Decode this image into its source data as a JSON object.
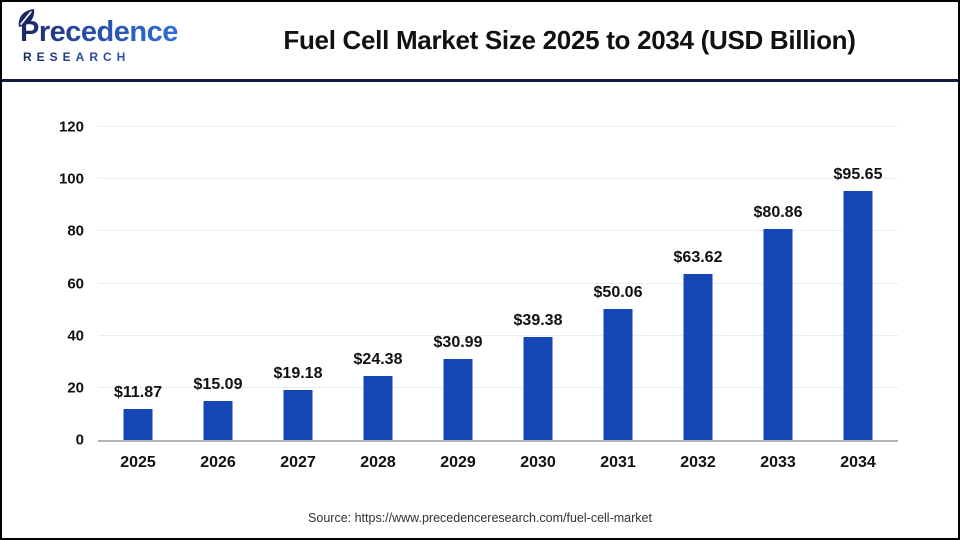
{
  "header": {
    "logo": {
      "primary": "Precedence",
      "secondary": "RESEARCH"
    }
  },
  "chart_data": {
    "type": "bar",
    "title": "Fuel Cell Market Size 2025 to 2034 (USD Billion)",
    "unit": "USD Billion",
    "categories": [
      "2025",
      "2026",
      "2027",
      "2028",
      "2029",
      "2030",
      "2031",
      "2032",
      "2033",
      "2034"
    ],
    "values": [
      11.87,
      15.09,
      19.18,
      24.38,
      30.99,
      39.38,
      50.06,
      63.62,
      80.86,
      95.65
    ],
    "value_labels": [
      "$11.87",
      "$15.09",
      "$19.18",
      "$24.38",
      "$30.99",
      "$39.38",
      "$50.06",
      "$63.62",
      "$80.86",
      "$95.65"
    ],
    "xlabel": "",
    "ylabel": "",
    "ylim": [
      0,
      120
    ],
    "yticks": [
      0,
      20,
      40,
      60,
      80,
      100,
      120
    ],
    "grid": "horizontal",
    "legend": "none",
    "bar_color": "#1645B5",
    "source_note": "Source: https://www.precedenceresearch.com/fuel-cell-market"
  },
  "colors": {
    "background": "#FFFFFF",
    "frame_border": "#000000",
    "header_rule": "#141A45",
    "bar": "#1645B5",
    "gridline": "#ECECEC",
    "axis_line": "#B3B3B3",
    "title_text": "#111111",
    "label_text": "#111111",
    "source_text": "#333333",
    "logo_navy": "#1B2860",
    "logo_blue": "#2F6FD8"
  }
}
